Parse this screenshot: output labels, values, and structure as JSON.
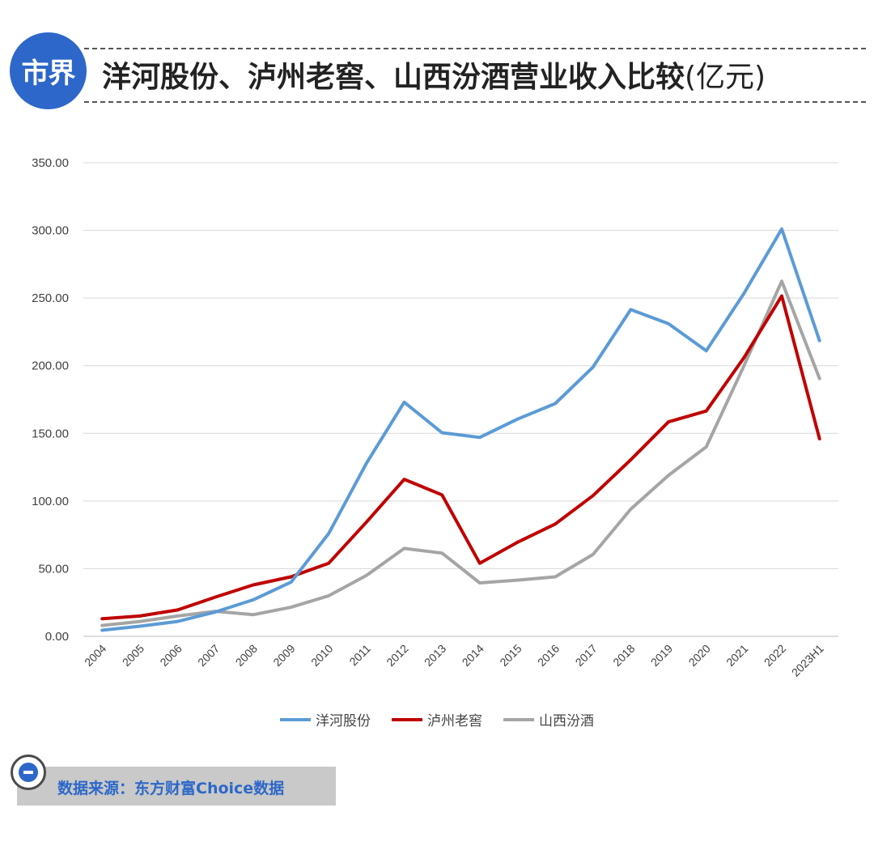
{
  "header": {
    "logo_text": "市界",
    "title": "洋河股份、泸州老窖、山西汾酒营业收入比较",
    "title_unit": "(亿元)"
  },
  "source": {
    "text": "数据来源：东方财富Choice数据",
    "icon": "minus-circle-icon"
  },
  "colors": {
    "logo": "#2d67c9",
    "series": [
      "#5b9bd5",
      "#c00000",
      "#a5a5a5"
    ],
    "grid": "#d9d9d9",
    "source_bg": "#c8c9c8",
    "source_text": "#2d67c9"
  },
  "chart_data": {
    "type": "line",
    "title": "洋河股份、泸州老窖、山西汾酒营业收入比较(亿元)",
    "xlabel": "",
    "ylabel": "",
    "ylim": [
      0,
      350
    ],
    "yticks": [
      "0.00",
      "50.00",
      "100.00",
      "150.00",
      "200.00",
      "250.00",
      "300.00",
      "350.00"
    ],
    "grid": true,
    "legend_position": "bottom",
    "categories": [
      "2004",
      "2005",
      "2006",
      "2007",
      "2008",
      "2009",
      "2010",
      "2011",
      "2012",
      "2013",
      "2014",
      "2015",
      "2016",
      "2017",
      "2018",
      "2019",
      "2020",
      "2021",
      "2022",
      "2023H1"
    ],
    "series": [
      {
        "name": "洋河股份",
        "values": [
          4.5,
          7.5,
          11,
          18,
          27,
          40,
          76,
          128,
          173,
          150.5,
          147,
          160.5,
          172,
          199,
          241.5,
          231,
          211,
          253.5,
          301,
          218.5
        ]
      },
      {
        "name": "泸州老窖",
        "values": [
          13,
          15,
          19.5,
          29,
          38,
          44,
          54,
          84.5,
          116,
          104.5,
          54,
          69.5,
          83,
          104,
          130.5,
          158.5,
          166.5,
          206,
          251.5,
          146
        ]
      },
      {
        "name": "山西汾酒",
        "values": [
          8,
          11,
          15,
          18.5,
          16,
          21.5,
          30,
          45,
          65,
          61.5,
          39.5,
          41.5,
          44,
          60.5,
          94,
          119,
          140,
          200,
          262.5,
          190.5
        ]
      }
    ]
  }
}
